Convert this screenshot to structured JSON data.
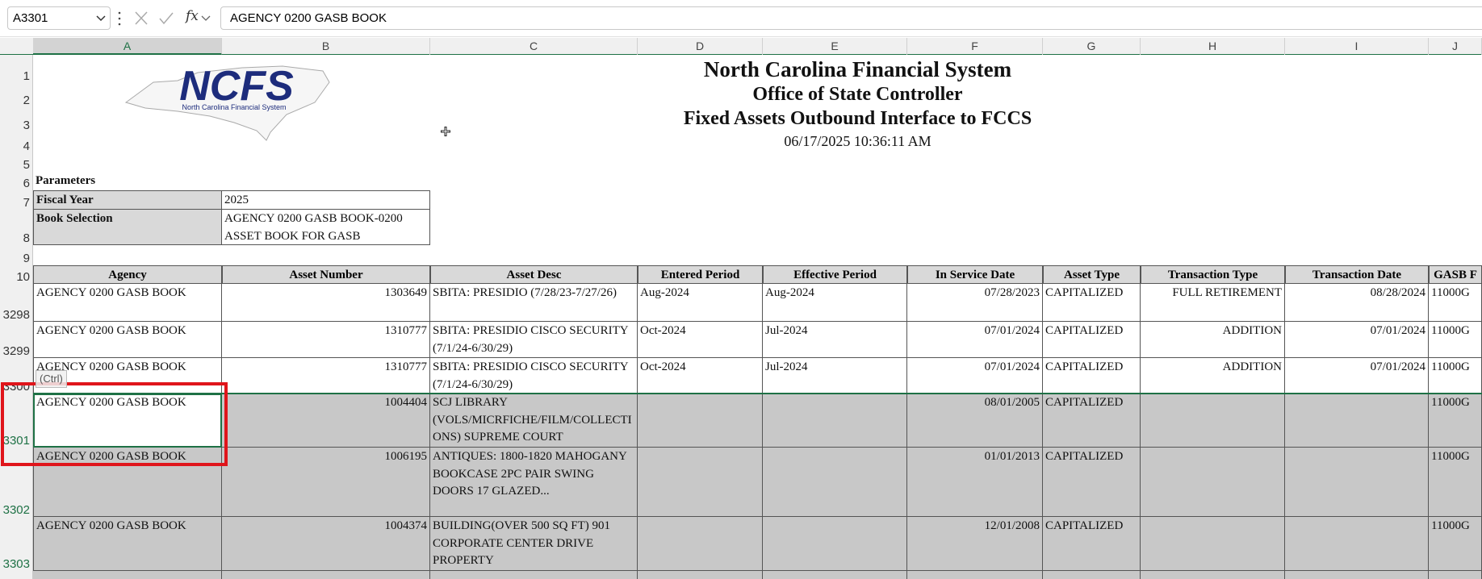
{
  "formula_bar": {
    "name_box": "A3301",
    "fx_label": "fx",
    "formula": "AGENCY 0200 GASB BOOK"
  },
  "column_letters": [
    "A",
    "B",
    "C",
    "D",
    "E",
    "F",
    "G",
    "H",
    "I",
    "J"
  ],
  "row_numbers": [
    1,
    2,
    3,
    4,
    5,
    6,
    7,
    8,
    9,
    10
  ],
  "logo": {
    "name": "NCFS",
    "tagline": "North Carolina Financial System"
  },
  "report": {
    "title": "North Carolina Financial System",
    "subtitle": "Office of State Controller",
    "report_name": "Fixed Assets Outbound Interface to FCCS",
    "timestamp": "06/17/2025 10:36:11 AM"
  },
  "parameters": {
    "heading": "Parameters",
    "fiscal_year_label": "Fiscal Year",
    "fiscal_year": 2025,
    "book_selection_label": "Book Selection",
    "book_selection": "AGENCY 0200 GASB BOOK-0200 ASSET BOOK FOR GASB"
  },
  "paste_options": "(Ctrl)",
  "table": {
    "columns": [
      "Agency",
      "Asset Number",
      "Asset Desc",
      "Entered Period",
      "Effective Period",
      "In Service Date",
      "Asset Type",
      "Transaction Type",
      "Transaction Date",
      "GASB F"
    ],
    "rows": [
      {
        "row": 3298,
        "cells": [
          "AGENCY 0200 GASB BOOK",
          1303649,
          "SBITA: PRESIDIO (7/28/23-7/27/26)",
          "Aug-2024",
          "Aug-2024",
          "07/28/2023",
          "CAPITALIZED",
          "FULL RETIREMENT",
          "08/28/2024",
          "11000G"
        ]
      },
      {
        "row": 3299,
        "cells": [
          "AGENCY 0200 GASB BOOK",
          1310777,
          "SBITA: PRESIDIO CISCO SECURITY (7/1/24-6/30/29)",
          "Oct-2024",
          "Jul-2024",
          "07/01/2024",
          "CAPITALIZED",
          "ADDITION",
          "07/01/2024",
          "11000G"
        ]
      },
      {
        "row": 3300,
        "cells": [
          "AGENCY 0200 GASB BOOK",
          1310777,
          "SBITA: PRESIDIO CISCO SECURITY (7/1/24-6/30/29)",
          "Oct-2024",
          "Jul-2024",
          "07/01/2024",
          "CAPITALIZED",
          "ADDITION",
          "07/01/2024",
          "11000G"
        ]
      },
      {
        "row": 3301,
        "cells": [
          "AGENCY 0200 GASB BOOK",
          1004404,
          "SCJ LIBRARY (VOLS/MICRFICHE/FILM/COLLECTIONS) SUPREME COURT",
          null,
          null,
          "08/01/2005",
          "CAPITALIZED",
          null,
          null,
          "11000G"
        ]
      },
      {
        "row": 3302,
        "cells": [
          "AGENCY 0200 GASB BOOK",
          1006195,
          "ANTIQUES: 1800-1820 MAHOGANY BOOKCASE 2PC PAIR SWING DOORS 17 GLAZED...",
          null,
          null,
          "01/01/2013",
          "CAPITALIZED",
          null,
          null,
          "11000G"
        ]
      },
      {
        "row": 3303,
        "cells": [
          "AGENCY 0200 GASB BOOK",
          1004374,
          "BUILDING(OVER 500 SQ FT) 901 CORPORATE CENTER DRIVE PROPERTY",
          null,
          null,
          "12/01/2008",
          "CAPITALIZED",
          null,
          null,
          "11000G"
        ]
      }
    ]
  }
}
